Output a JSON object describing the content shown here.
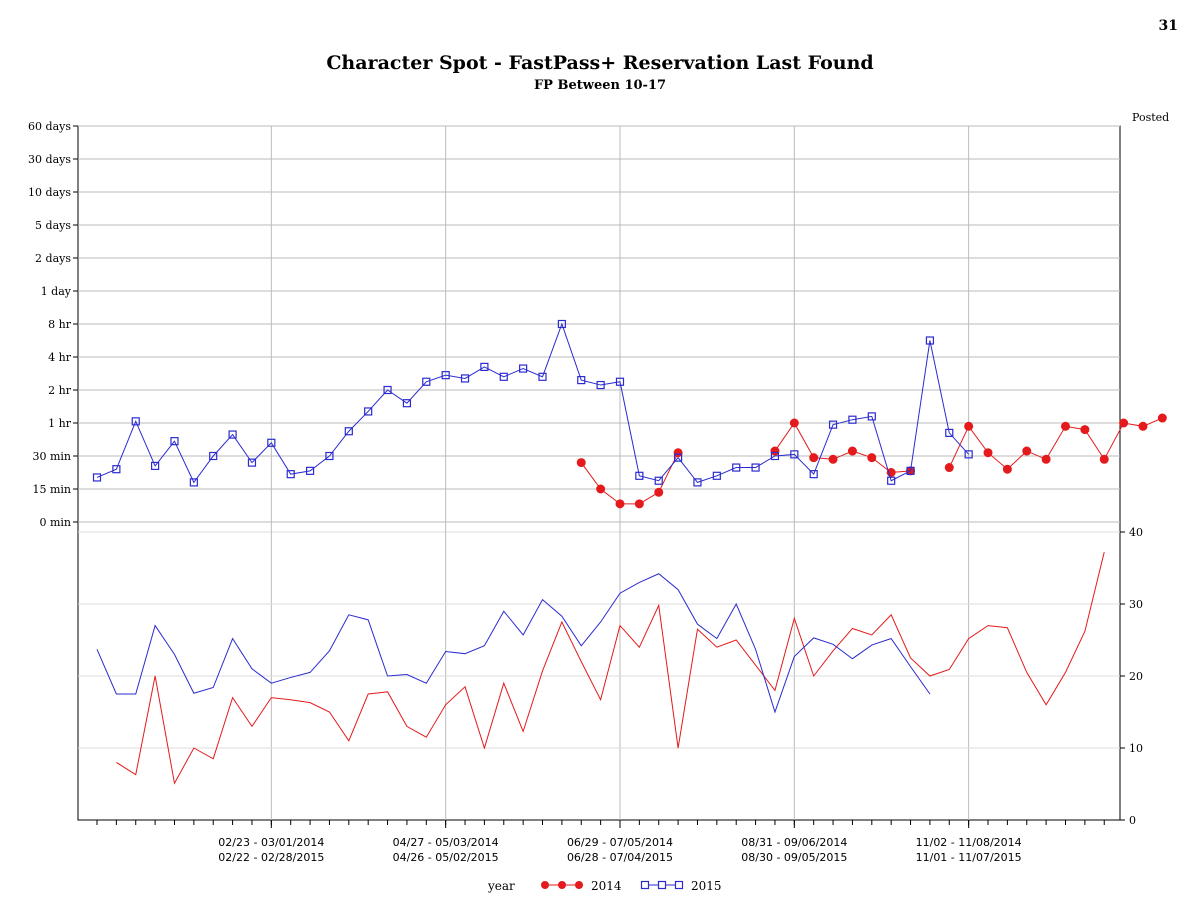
{
  "page_number": "31",
  "chart_data": {
    "type": "line",
    "title": "Character Spot - FastPass+ Reservation Last Found",
    "subtitle": "FP Between 10-17",
    "right_axis_label": "Posted",
    "top_panel": {
      "y_tick_labels": [
        "60 days",
        "30 days",
        "10 days",
        "5 days",
        "2 days",
        "1 day",
        "8 hr",
        "4 hr",
        "2 hr",
        "1 hr",
        "30 min",
        "15 min",
        "0 min"
      ],
      "series": [
        {
          "name": "2014",
          "color": "#e41a1c",
          "values": [
            null,
            null,
            null,
            null,
            null,
            null,
            null,
            null,
            null,
            null,
            null,
            null,
            null,
            null,
            null,
            null,
            null,
            null,
            null,
            null,
            null,
            null,
            null,
            null,
            null,
            10.2,
            11.0,
            11.45,
            11.45,
            11.1,
            9.9,
            null,
            null,
            null,
            null,
            9.85,
            9.0,
            10.05,
            10.1,
            9.85,
            10.05,
            10.5,
            10.45,
            null,
            10.35,
            9.1,
            9.9,
            10.4,
            9.85,
            10.1,
            9.1,
            9.2,
            10.1,
            9.0,
            9.1,
            8.85
          ]
        },
        {
          "name": "2015",
          "color": "#2b2bd0",
          "values": [
            10.65,
            10.4,
            8.95,
            10.3,
            9.55,
            10.8,
            10.0,
            9.35,
            10.2,
            9.6,
            10.55,
            10.45,
            10.0,
            9.25,
            8.65,
            8.0,
            8.4,
            7.75,
            7.55,
            7.65,
            7.3,
            7.6,
            7.35,
            7.6,
            6.0,
            7.7,
            7.85,
            7.75,
            10.6,
            10.75,
            10.05,
            10.8,
            10.6,
            10.35,
            10.35,
            10.0,
            9.95,
            10.55,
            9.05,
            8.9,
            8.8,
            10.75,
            10.45,
            6.5,
            9.3,
            9.95
          ]
        }
      ]
    },
    "bottom_panel": {
      "y_ticks": [
        0,
        10,
        20,
        30,
        40
      ],
      "ylim": [
        0,
        40
      ],
      "series": [
        {
          "name": "2014",
          "color": "#e41a1c",
          "values": [
            null,
            8,
            6.3,
            20,
            5.1,
            10,
            8.5,
            17,
            13,
            17,
            16.7,
            16.3,
            15,
            11,
            17.5,
            17.8,
            13,
            11.5,
            16,
            18.5,
            10,
            19,
            12.3,
            20.7,
            27.5,
            22,
            16.7,
            27,
            24,
            29.8,
            10,
            26.5,
            24,
            25,
            21.5,
            18,
            28,
            20,
            23.5,
            26.6,
            25.7,
            28.5,
            22.5,
            20,
            20.9,
            25.2,
            27,
            26.7,
            20.5,
            16,
            20.5,
            26.2,
            37.2
          ]
        },
        {
          "name": "2015",
          "color": "#2b2bd0",
          "values": [
            23.7,
            17.5,
            17.5,
            27,
            23,
            17.6,
            18.4,
            25.2,
            21,
            19,
            19.8,
            20.5,
            23.5,
            28.5,
            27.8,
            20,
            20.2,
            19,
            23.4,
            23.1,
            24.2,
            29,
            25.7,
            30.6,
            28.3,
            24.2,
            27.5,
            31.5,
            33,
            34.2,
            32,
            27.2,
            25.2,
            30,
            23.7,
            15,
            22.7,
            25.3,
            24.4,
            22.4,
            24.3,
            25.2,
            21.3,
            17.5
          ]
        }
      ]
    },
    "x_tick_labels": [
      {
        "line1": "02/23 - 03/01/2014",
        "line2": "02/22 - 02/28/2015"
      },
      {
        "line1": "04/27 - 05/03/2014",
        "line2": "04/26 - 05/02/2015"
      },
      {
        "line1": "06/29 - 07/05/2014",
        "line2": "06/28 - 07/04/2015"
      },
      {
        "line1": "08/31 - 09/06/2014",
        "line2": "08/30 - 09/05/2015"
      },
      {
        "line1": "11/02 - 11/08/2014",
        "line2": "11/01 - 11/07/2015"
      }
    ],
    "x_tick_weeks": [
      9,
      18,
      27,
      36,
      45
    ],
    "legend": {
      "title": "year",
      "entries": [
        "2014",
        "2015"
      ],
      "placement": "bottom-center"
    },
    "grid": true
  }
}
